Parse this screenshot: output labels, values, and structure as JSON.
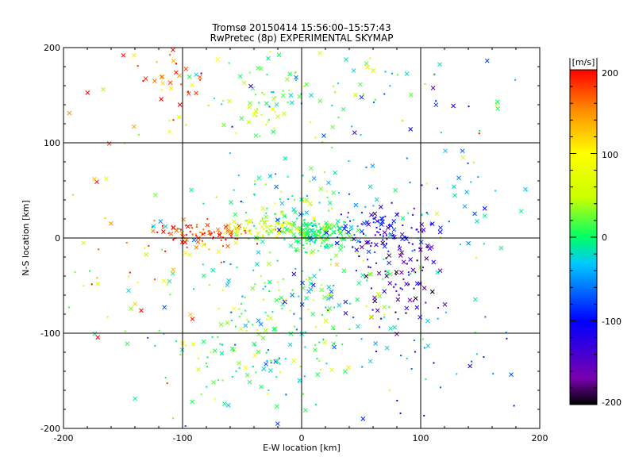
{
  "chart_data": {
    "type": "scatter",
    "title": "Tromsø 20150414 15:56:00–15:57:43",
    "subtitle": "RwPretec (8p) EXPERIMENTAL SKYMAP",
    "xlabel": "E-W location [km]",
    "ylabel": "N-S location [km]",
    "xlim": [
      -200,
      200
    ],
    "ylim": [
      -200,
      200
    ],
    "xticks": [
      "-200",
      "-100",
      "0",
      "100",
      "200"
    ],
    "yticks": [
      "-200",
      "-100",
      "0",
      "100",
      "200"
    ],
    "grid": true,
    "grid_lines": [
      -100,
      0,
      100
    ],
    "colorbar": {
      "label": "[m/s]",
      "min": -200,
      "max": 200,
      "ticks": [
        "200",
        "100",
        "0",
        "-100",
        "-200"
      ],
      "colormap": "rainbow",
      "colors": [
        "#000000",
        "#7a00b0",
        "#0000ff",
        "#00c8ff",
        "#00ff66",
        "#ccff00",
        "#ffff00",
        "#ff8c00",
        "#ff0000"
      ]
    },
    "markers": [
      "cross",
      "dot"
    ],
    "clusters": [
      {
        "cx": 15,
        "cy": 5,
        "sx": 14,
        "sy": 8,
        "n": 170,
        "vmean": 10,
        "vsd": 18
      },
      {
        "cx": 70,
        "cy": 8,
        "sx": 22,
        "sy": 12,
        "n": 100,
        "vmean": -120,
        "vsd": 35
      },
      {
        "cx": -85,
        "cy": 4,
        "sx": 20,
        "sy": 6,
        "n": 80,
        "vmean": 175,
        "vsd": 25
      },
      {
        "cx": -35,
        "cy": 10,
        "sx": 14,
        "sy": 8,
        "n": 70,
        "vmean": 60,
        "vsd": 35
      },
      {
        "cx": 85,
        "cy": -45,
        "sx": 18,
        "sy": 25,
        "n": 70,
        "vmean": -160,
        "vsd": 40
      },
      {
        "cx": 5,
        "cy": -60,
        "sx": 40,
        "sy": 30,
        "n": 140,
        "vmean": 0,
        "vsd": 50
      },
      {
        "cx": -40,
        "cy": -120,
        "sx": 50,
        "sy": 40,
        "n": 140,
        "vmean": 5,
        "vsd": 35
      },
      {
        "cx": -30,
        "cy": 150,
        "sx": 30,
        "sy": 25,
        "n": 70,
        "vmean": 20,
        "vsd": 30
      },
      {
        "cx": -120,
        "cy": 160,
        "sx": 25,
        "sy": 25,
        "n": 40,
        "vmean": 150,
        "vsd": 50
      },
      {
        "cx": 60,
        "cy": 150,
        "sx": 60,
        "sy": 30,
        "n": 60,
        "vmean": -20,
        "vsd": 70
      },
      {
        "cx": 130,
        "cy": 40,
        "sx": 40,
        "sy": 40,
        "n": 50,
        "vmean": -30,
        "vsd": 40
      },
      {
        "cx": -140,
        "cy": -20,
        "sx": 40,
        "sy": 50,
        "n": 70,
        "vmean": 100,
        "vsd": 80
      },
      {
        "cx": 120,
        "cy": -130,
        "sx": 40,
        "sy": 40,
        "n": 40,
        "vmean": -70,
        "vsd": 60
      },
      {
        "cx": 0,
        "cy": 40,
        "sx": 30,
        "sy": 20,
        "n": 90,
        "vmean": -10,
        "vsd": 40
      }
    ]
  }
}
